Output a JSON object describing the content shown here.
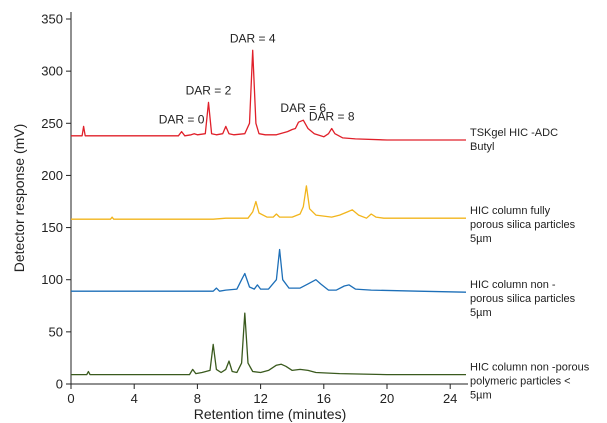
{
  "chart_data": {
    "type": "line",
    "title": "",
    "xlabel": "Retention time (minutes)",
    "ylabel": "Detector response (mV)",
    "xlim": [
      0,
      25
    ],
    "ylim": [
      0,
      350
    ],
    "xticks": [
      "0",
      "4",
      "8",
      "12",
      "16",
      "20",
      "24"
    ],
    "yticks": [
      "0",
      "50",
      "100",
      "150",
      "200",
      "250",
      "300",
      "350"
    ],
    "grid": false,
    "legend": "labels at right end of each trace",
    "series": [
      {
        "label_lines": [
          "TSKgel HIC -ADC",
          "Butyl"
        ],
        "color": "#e0202a",
        "baseline": 238,
        "end_baseline": 234,
        "x": [
          0,
          0.7,
          0.8,
          0.9,
          1.2,
          3,
          5,
          6.8,
          7.0,
          7.2,
          7.6,
          7.8,
          8.0,
          8.5,
          8.7,
          8.9,
          9.2,
          9.6,
          9.8,
          10.0,
          10.3,
          11.0,
          11.3,
          11.5,
          11.7,
          11.9,
          12.3,
          13,
          13.7,
          14.0,
          14.2,
          14.4,
          14.7,
          15.0,
          15.4,
          16.0,
          16.3,
          16.5,
          16.7,
          17.2,
          18,
          20,
          22,
          25
        ],
        "y": [
          238,
          238,
          247,
          238,
          238,
          238,
          238,
          238,
          242,
          238,
          239,
          240,
          239,
          240,
          270,
          240,
          239,
          240,
          247,
          240,
          239,
          240,
          250,
          320,
          250,
          240,
          239,
          239,
          242,
          244,
          245,
          251,
          253,
          245,
          240,
          237,
          240,
          245,
          240,
          236,
          235,
          234,
          234,
          234
        ],
        "annotations": [
          {
            "text": "DAR = 0",
            "x": 7.0,
            "y": 242
          },
          {
            "text": "DAR = 2",
            "x": 8.7,
            "y": 270
          },
          {
            "text": "DAR = 4",
            "x": 11.5,
            "y": 320
          },
          {
            "text": "DAR = 6",
            "x": 14.7,
            "y": 253
          },
          {
            "text": "DAR = 8",
            "x": 16.5,
            "y": 245
          }
        ]
      },
      {
        "label_lines": [
          "HIC column fully",
          "porous silica particles",
          "5µm"
        ],
        "color": "#f2b51c",
        "baseline": 158,
        "end_baseline": 159,
        "x": [
          0,
          2.5,
          2.6,
          2.7,
          5,
          9,
          9.8,
          10.2,
          11.2,
          11.5,
          11.7,
          11.9,
          12.4,
          12.8,
          13.0,
          13.2,
          14.0,
          14.5,
          14.7,
          14.9,
          15.1,
          15.5,
          16.5,
          17.0,
          17.5,
          17.8,
          18.2,
          18.7,
          19.0,
          19.3,
          19.8,
          22,
          25
        ],
        "y": [
          158,
          158,
          160,
          158,
          158,
          158,
          159,
          159,
          159,
          165,
          175,
          164,
          160,
          160,
          163,
          160,
          160,
          163,
          170,
          190,
          168,
          162,
          160,
          162,
          165,
          167,
          162,
          159,
          163,
          160,
          159,
          159,
          159
        ],
        "annotations": []
      },
      {
        "label_lines": [
          "HIC column non -",
          "porous silica particles",
          "5µm"
        ],
        "color": "#1d6fb8",
        "baseline": 89,
        "end_baseline": 88,
        "x": [
          0,
          5,
          8,
          9.0,
          9.2,
          9.4,
          9.8,
          10.5,
          10.8,
          11.0,
          11.3,
          11.6,
          11.8,
          12.0,
          12.5,
          13.0,
          13.2,
          13.4,
          13.8,
          14.5,
          15.0,
          15.5,
          15.8,
          16.3,
          16.8,
          17.3,
          17.6,
          18.0,
          19,
          22,
          25
        ],
        "y": [
          89,
          89,
          89,
          89,
          92,
          89,
          90,
          91,
          100,
          106,
          93,
          91,
          95,
          91,
          91,
          100,
          129,
          100,
          92,
          92,
          96,
          100,
          96,
          90,
          90,
          94,
          95,
          91,
          90,
          89,
          88
        ],
        "annotations": []
      },
      {
        "label_lines": [
          "HIC column non -porous",
          "polymeric particles <",
          "5µm"
        ],
        "color": "#3a5a1e",
        "baseline": 9,
        "end_baseline": 9,
        "x": [
          0,
          1.0,
          1.1,
          1.2,
          3,
          7.5,
          7.7,
          7.9,
          8.3,
          8.8,
          9.0,
          9.2,
          9.5,
          9.8,
          10.0,
          10.2,
          10.5,
          10.8,
          11.0,
          11.2,
          11.5,
          12.0,
          12.5,
          13.0,
          13.3,
          13.6,
          14.0,
          14.5,
          15.0,
          15.5,
          17,
          20,
          25
        ],
        "y": [
          9,
          9,
          12,
          9,
          9,
          9,
          14,
          10,
          11,
          13,
          38,
          14,
          11,
          14,
          22,
          12,
          11,
          20,
          68,
          20,
          12,
          11,
          13,
          18,
          19,
          17,
          13,
          14,
          13,
          11,
          10,
          9,
          9
        ],
        "annotations": []
      }
    ]
  }
}
